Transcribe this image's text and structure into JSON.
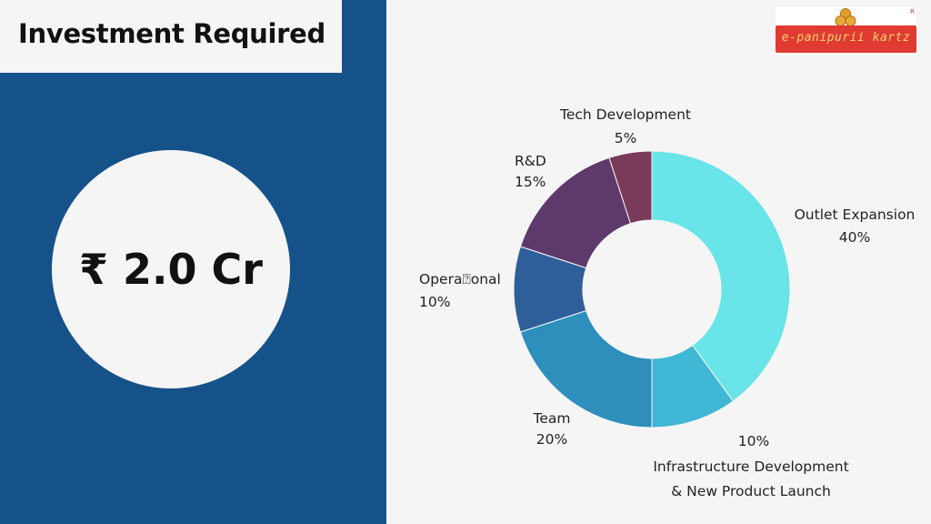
{
  "slide": {
    "title": "Investment Required",
    "amount": "₹ 2.0 Cr"
  },
  "logo": {
    "text": "e-panipurii kartz",
    "mark": "R"
  },
  "colors": {
    "left_panel": "#15528a",
    "background": "#f5f5f5",
    "logo_red": "#e03a32",
    "logo_text": "#f7d56b"
  },
  "chart_data": {
    "type": "donut",
    "title": "",
    "slices": [
      {
        "label": "Outlet Expansion",
        "value": 40,
        "value_label": "40%",
        "color": "#69e4e8"
      },
      {
        "label": "Infrastructure Development & New Product Launch",
        "label_lines": [
          "Infrastructure Development",
          "& New Product Launch"
        ],
        "value": 10,
        "value_label": "10%",
        "color": "#41b7d6"
      },
      {
        "label": "Team",
        "value": 20,
        "value_label": "20%",
        "color": "#2e8fbd"
      },
      {
        "label": "Operational",
        "label_display": "Opera⍰onal",
        "value": 10,
        "value_label": "10%",
        "color": "#2f5f9a"
      },
      {
        "label": "R&D",
        "value": 15,
        "value_label": "15%",
        "color": "#5d3a6b"
      },
      {
        "label": "Tech Development",
        "value": 5,
        "value_label": "5%",
        "color": "#7a3a5a"
      }
    ]
  }
}
